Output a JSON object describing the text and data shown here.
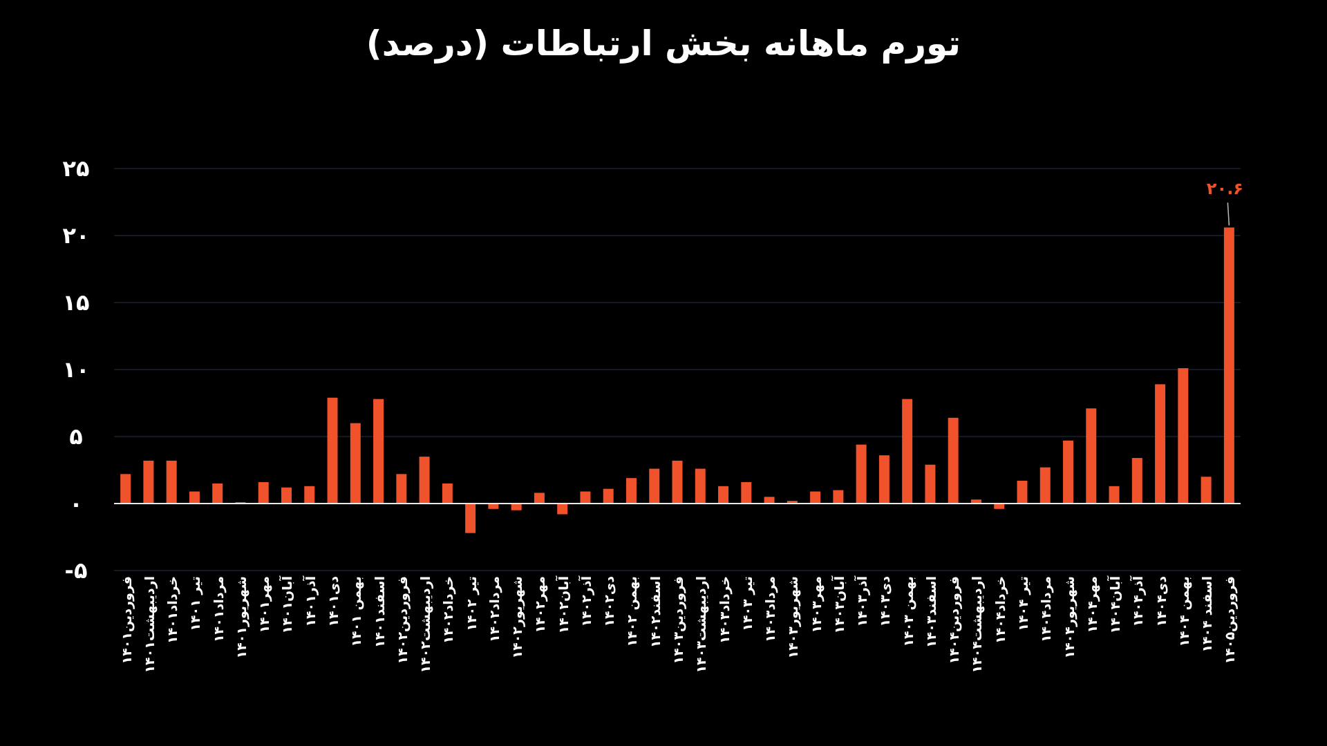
{
  "chart_data": {
    "type": "bar",
    "title": "تورم ماهانه بخش ارتباطات (درصد)",
    "categories": [
      "فروردین۱۴۰۱",
      "اردیبهشت۱۴۰۱",
      "خرداد۱۴۰۱",
      "تیر ۱۴۰۱",
      "مرداد۱۴۰۱",
      "شهریور۱۴۰۱",
      "مهر۱۴۰۱",
      "آبان۱۴۰۱",
      "آذر۱۴۰۱",
      "دی۱۴۰۱",
      "بهمن ۱۴۰۱",
      "اسفند۱۴۰۱",
      "فروردین۱۴۰۲",
      "اردیبهشت۱۴۰۲",
      "خرداد۱۴۰۲",
      "تیر ۱۴۰۲",
      "مرداد۱۴۰۲",
      "شهریور۱۴۰۲",
      "مهر۱۴۰۲",
      "آبان۱۴۰۲",
      "آذر۱۴۰۲",
      "دی۱۴۰۲",
      "بهمن ۱۴۰۲",
      "اسفند۱۴۰۲",
      "فروردین۱۴۰۳",
      "اردیبهشت۱۴۰۳",
      "خرداد۱۴۰۳",
      "تیر ۱۴۰۳",
      "مرداد۱۴۰۳",
      "شهریور۱۴۰۳",
      "مهر۱۴۰۳",
      "آبان۱۴۰۳",
      "آذر۱۴۰۳",
      "دی۱۴۰۳",
      "بهمن ۱۴۰۳",
      "اسفند۱۴۰۳",
      "فروردین۱۴۰۴",
      "اردیبهشت۱۴۰۴",
      "خرداد۱۴۰۴",
      "تیر ۱۴۰۴",
      "مرداد۱۴۰۴",
      "شهریور۱۴۰۴",
      "مهر۱۴۰۴",
      "آبان۱۴۰۴",
      "آذر۱۴۰۴",
      "دی۱۴۰۴",
      "بهمن ۱۴۰۴",
      "اسفند ۱۴۰۴",
      "فروردین۱۴۰۵"
    ],
    "values": [
      2.2,
      3.2,
      3.2,
      0.9,
      1.5,
      0.1,
      1.6,
      1.2,
      1.3,
      7.9,
      6.0,
      7.8,
      2.2,
      3.5,
      1.5,
      -2.2,
      -0.4,
      -0.5,
      0.8,
      -0.8,
      0.9,
      1.1,
      1.9,
      2.6,
      3.2,
      2.6,
      1.3,
      1.6,
      0.5,
      0.2,
      0.9,
      1.0,
      4.4,
      3.6,
      7.8,
      2.9,
      6.4,
      0.3,
      -0.4,
      1.7,
      2.7,
      4.7,
      7.1,
      1.3,
      3.4,
      8.9,
      10.1,
      2.0,
      20.6
    ],
    "value_labels": [
      null,
      null,
      null,
      null,
      null,
      null,
      null,
      null,
      null,
      null,
      null,
      null,
      null,
      null,
      null,
      null,
      null,
      null,
      null,
      null,
      null,
      null,
      null,
      null,
      null,
      null,
      null,
      null,
      null,
      null,
      null,
      null,
      null,
      null,
      null,
      null,
      null,
      null,
      null,
      null,
      null,
      null,
      null,
      null,
      null,
      null,
      null,
      null,
      "۲۰.۶"
    ],
    "color": "#f0532b",
    "ylim": [
      -5,
      25
    ],
    "yticks": [
      {
        "value": -5,
        "label": "-۵"
      },
      {
        "value": 0,
        "label": "۰"
      },
      {
        "value": 5,
        "label": "۵"
      },
      {
        "value": 10,
        "label": "۱۰"
      },
      {
        "value": 15,
        "label": "۱۵"
      },
      {
        "value": 20,
        "label": "۲۰"
      },
      {
        "value": 25,
        "label": "۲۵"
      }
    ],
    "grid": "y"
  }
}
